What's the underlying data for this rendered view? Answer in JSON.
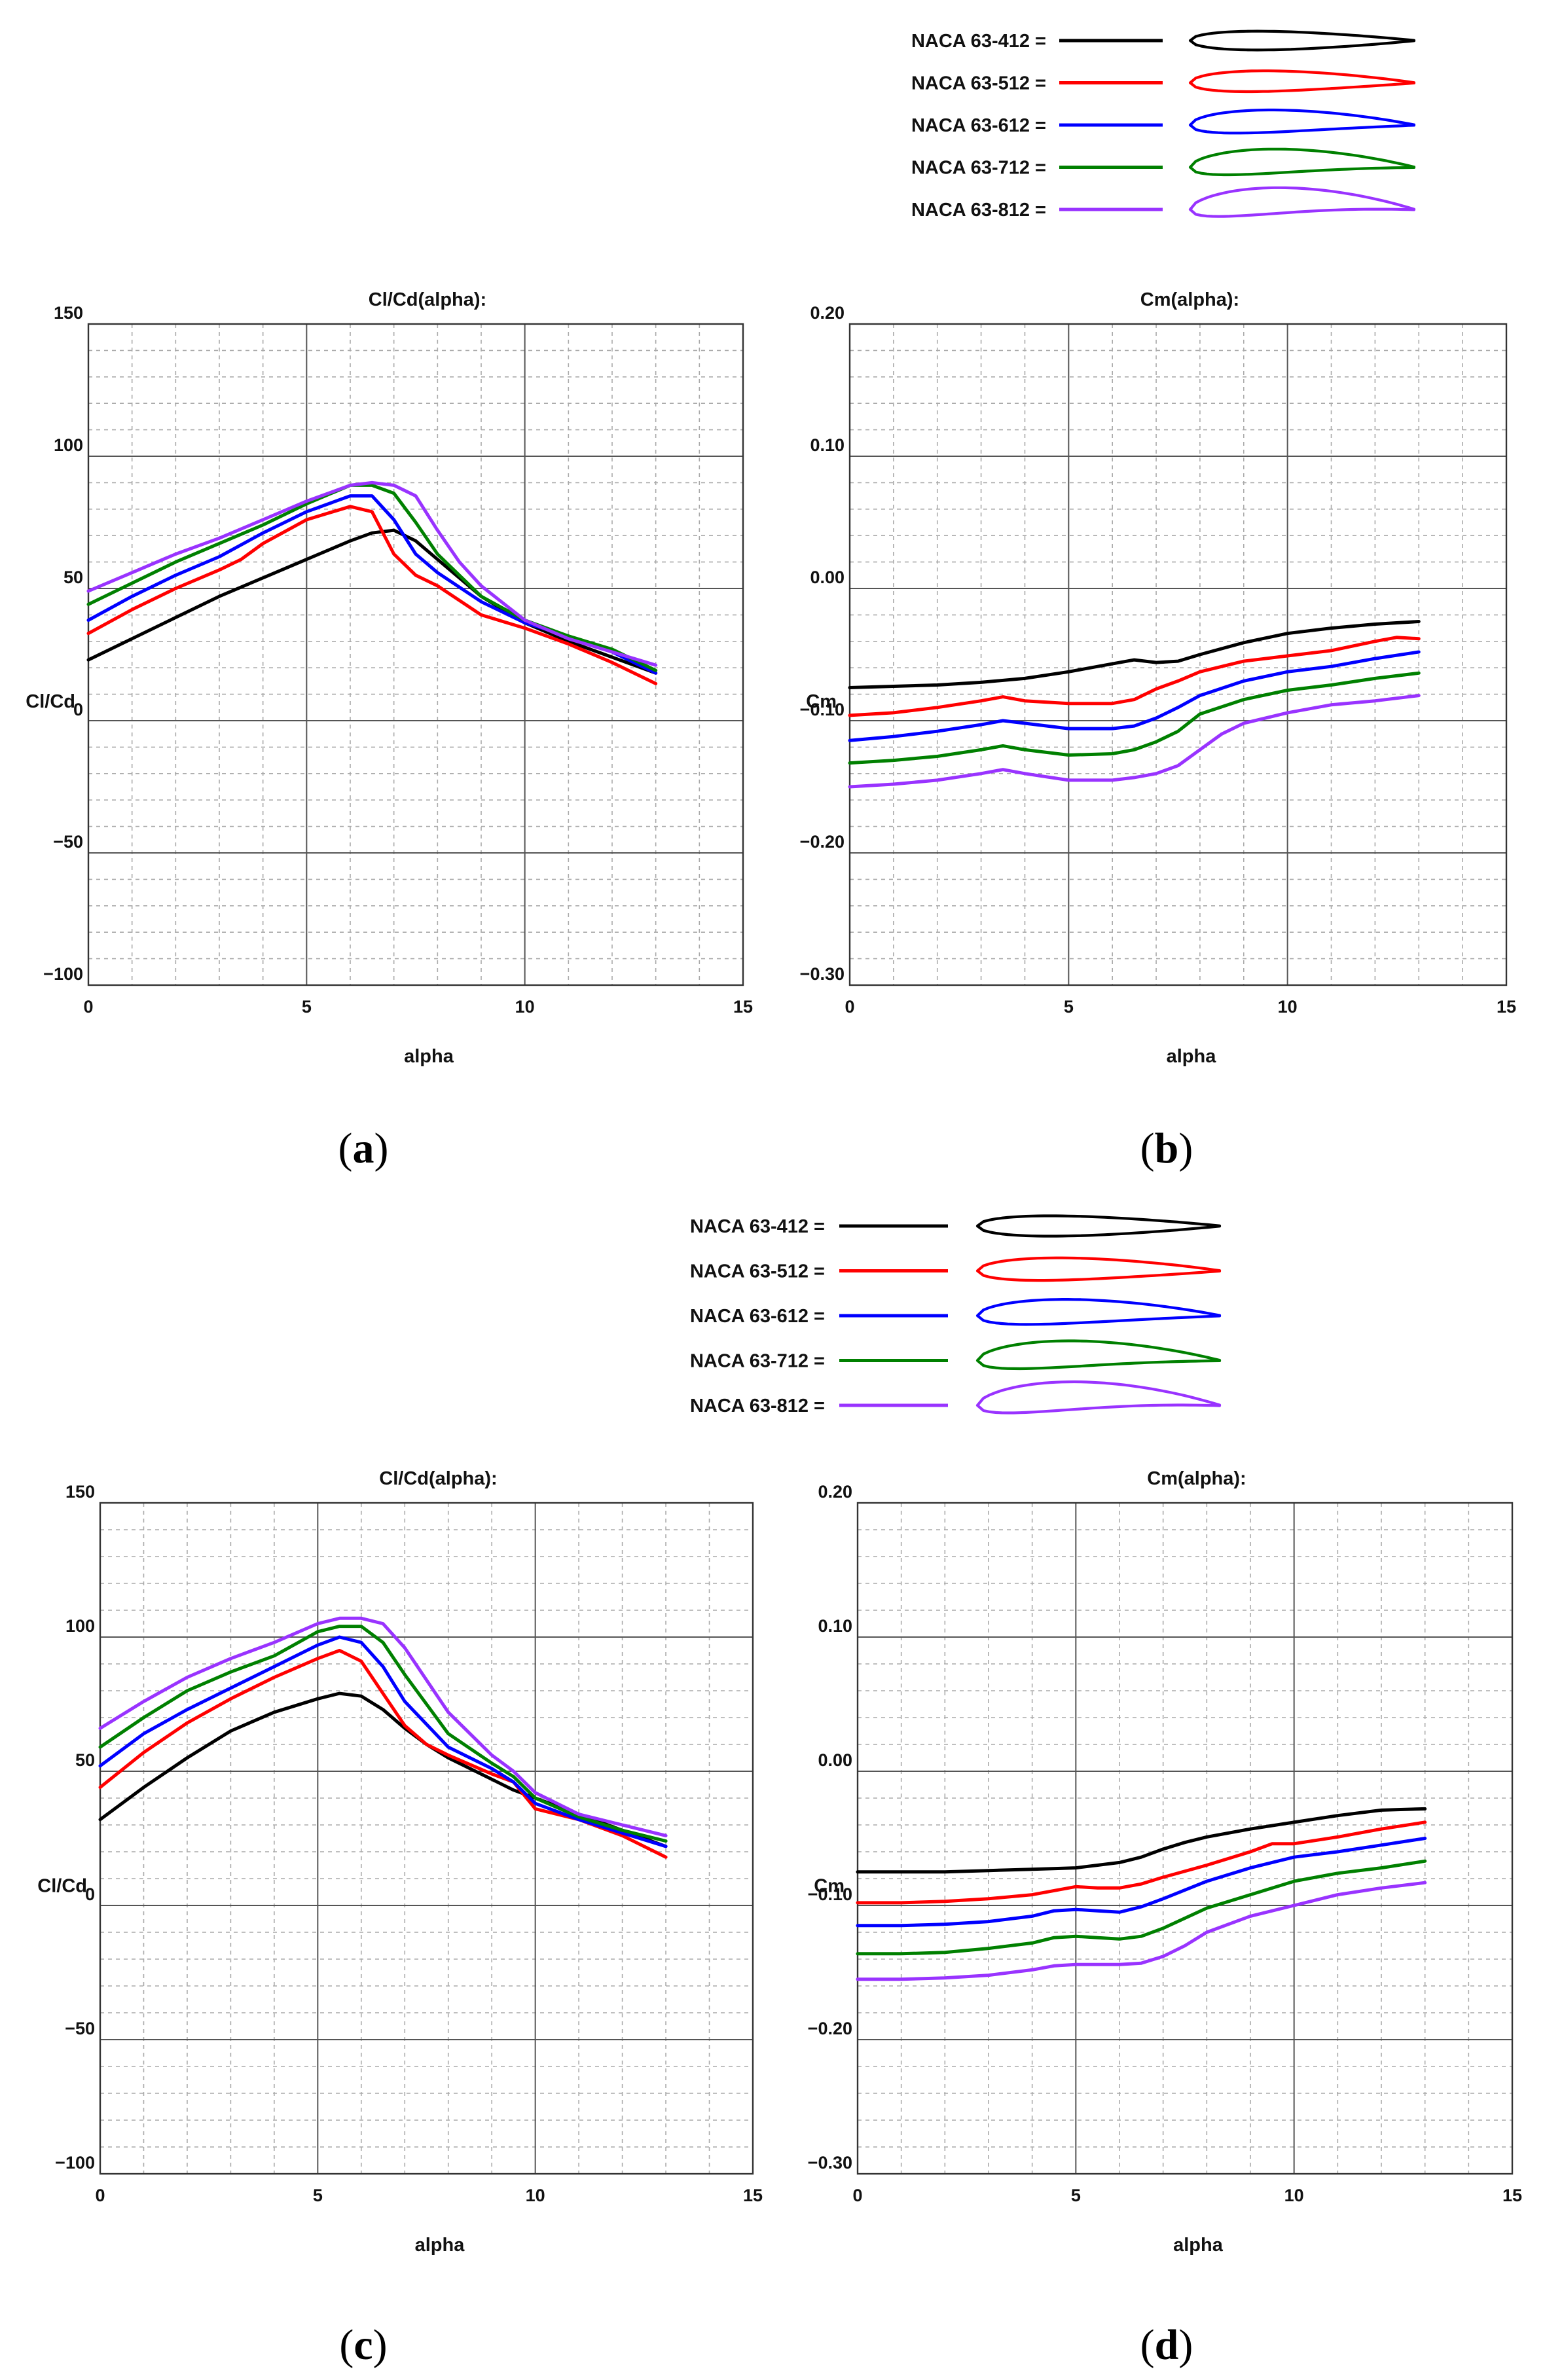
{
  "colors": {
    "NACA 63-412": "#000000",
    "NACA 63-512": "#ff0000",
    "NACA 63-612": "#0000ff",
    "NACA 63-712": "#008000",
    "NACA 63-812": "#9933ff",
    "grid_major": "#555555",
    "grid_minor": "#aaaaaa"
  },
  "legends": [
    {
      "entries": [
        {
          "name": "NACA 63-412",
          "label": "NACA 63-412 =",
          "icon": "airfoil-icon"
        },
        {
          "name": "NACA 63-512",
          "label": "NACA 63-512 =",
          "icon": "airfoil-icon"
        },
        {
          "name": "NACA 63-612",
          "label": "NACA 63-612 =",
          "icon": "airfoil-icon"
        },
        {
          "name": "NACA 63-712",
          "label": "NACA 63-712 =",
          "icon": "airfoil-icon"
        },
        {
          "name": "NACA 63-812",
          "label": "NACA 63-812 =",
          "icon": "airfoil-icon"
        }
      ]
    },
    {
      "entries": [
        {
          "name": "NACA 63-412",
          "label": "NACA 63-412 =",
          "icon": "airfoil-icon"
        },
        {
          "name": "NACA 63-512",
          "label": "NACA 63-512 =",
          "icon": "airfoil-icon"
        },
        {
          "name": "NACA 63-612",
          "label": "NACA 63-612 =",
          "icon": "airfoil-icon"
        },
        {
          "name": "NACA 63-712",
          "label": "NACA 63-712 =",
          "icon": "airfoil-icon"
        },
        {
          "name": "NACA 63-812",
          "label": "NACA 63-812 =",
          "icon": "airfoil-icon"
        }
      ]
    }
  ],
  "captions": {
    "a": "a",
    "b": "b",
    "c": "c",
    "d": "d"
  },
  "chart_data": [
    {
      "id": "a",
      "type": "line",
      "title": "Cl/Cd(alpha):",
      "xlabel": "alpha",
      "ylabel": "Cl/Cd",
      "xlim": [
        0,
        15
      ],
      "ylim": [
        -100,
        150
      ],
      "xticks": [
        0,
        5,
        10,
        15
      ],
      "yticks": [
        -100,
        -50,
        0,
        50,
        100,
        150
      ],
      "xtick_labels": [
        "0",
        "5",
        "10",
        "15"
      ],
      "ytick_labels": [
        "−100",
        "−50",
        "0",
        "50",
        "100",
        "150"
      ],
      "grid": true,
      "series": [
        {
          "name": "NACA 63-412",
          "x": [
            0,
            1,
            2,
            3,
            4,
            5,
            6,
            6.5,
            7,
            7.5,
            8,
            9,
            10,
            11,
            12,
            13
          ],
          "y": [
            23,
            31,
            39,
            47,
            54,
            61,
            68,
            71,
            72,
            68,
            61,
            47,
            37,
            30,
            24,
            18
          ]
        },
        {
          "name": "NACA 63-512",
          "x": [
            0,
            1,
            2,
            3,
            3.5,
            4,
            5,
            6,
            6.5,
            7,
            7.5,
            8,
            9,
            10,
            11,
            12,
            13
          ],
          "y": [
            33,
            42,
            50,
            57,
            61,
            67,
            76,
            81,
            79,
            63,
            55,
            51,
            40,
            35,
            29,
            22,
            14
          ]
        },
        {
          "name": "NACA 63-612",
          "x": [
            0,
            1,
            2,
            3,
            4,
            5,
            6,
            6.5,
            7,
            7.5,
            8,
            9,
            10,
            11,
            12,
            13
          ],
          "y": [
            38,
            47,
            55,
            62,
            71,
            79,
            85,
            85,
            76,
            63,
            56,
            45,
            37,
            32,
            26,
            18
          ]
        },
        {
          "name": "NACA 63-712",
          "x": [
            0,
            1,
            2,
            3,
            4,
            5,
            6,
            6.5,
            7,
            7.5,
            8,
            9,
            10,
            11,
            12,
            13
          ],
          "y": [
            44,
            52,
            60,
            67,
            74,
            82,
            89,
            89,
            86,
            75,
            63,
            47,
            38,
            32,
            27,
            19
          ]
        },
        {
          "name": "NACA 63-812",
          "x": [
            0,
            1,
            2,
            3,
            4,
            5,
            6,
            6.5,
            7,
            7.5,
            8,
            8.5,
            9,
            10,
            11,
            12,
            13
          ],
          "y": [
            49,
            56,
            63,
            69,
            76,
            83,
            89,
            90,
            89,
            85,
            72,
            60,
            51,
            38,
            31,
            26,
            21
          ]
        }
      ]
    },
    {
      "id": "b",
      "type": "line",
      "title": "Cm(alpha):",
      "xlabel": "alpha",
      "ylabel": "Cm",
      "xlim": [
        0,
        15
      ],
      "ylim": [
        -0.3,
        0.2
      ],
      "xticks": [
        0,
        5,
        10,
        15
      ],
      "yticks": [
        -0.3,
        -0.2,
        -0.1,
        0,
        0.1,
        0.2
      ],
      "xtick_labels": [
        "0",
        "5",
        "10",
        "15"
      ],
      "ytick_labels": [
        "−0.30",
        "−0.20",
        "−0.10",
        "0.00",
        "0.10",
        "0.20"
      ],
      "grid": true,
      "series": [
        {
          "name": "NACA 63-412",
          "x": [
            0,
            1,
            2,
            3,
            4,
            5,
            6,
            6.5,
            7,
            7.5,
            8,
            9,
            10,
            11,
            12,
            13
          ],
          "y": [
            -0.075,
            -0.074,
            -0.073,
            -0.071,
            -0.068,
            -0.063,
            -0.057,
            -0.054,
            -0.056,
            -0.055,
            -0.05,
            -0.041,
            -0.034,
            -0.03,
            -0.027,
            -0.025
          ]
        },
        {
          "name": "NACA 63-512",
          "x": [
            0,
            1,
            2,
            3,
            3.5,
            4,
            5,
            6,
            6.5,
            7,
            7.5,
            8,
            9,
            10,
            11,
            12,
            12.5,
            13
          ],
          "y": [
            -0.096,
            -0.094,
            -0.09,
            -0.085,
            -0.082,
            -0.085,
            -0.087,
            -0.087,
            -0.084,
            -0.076,
            -0.07,
            -0.063,
            -0.055,
            -0.051,
            -0.047,
            -0.04,
            -0.037,
            -0.038
          ]
        },
        {
          "name": "NACA 63-612",
          "x": [
            0,
            1,
            2,
            3,
            3.5,
            4,
            5,
            6,
            6.5,
            7,
            7.5,
            8,
            9,
            10,
            11,
            12,
            13
          ],
          "y": [
            -0.115,
            -0.112,
            -0.108,
            -0.103,
            -0.1,
            -0.102,
            -0.106,
            -0.106,
            -0.104,
            -0.098,
            -0.09,
            -0.081,
            -0.07,
            -0.063,
            -0.059,
            -0.053,
            -0.048
          ]
        },
        {
          "name": "NACA 63-712",
          "x": [
            0,
            1,
            2,
            3,
            3.5,
            4,
            5,
            6,
            6.5,
            7,
            7.5,
            8,
            9,
            10,
            11,
            12,
            13
          ],
          "y": [
            -0.132,
            -0.13,
            -0.127,
            -0.122,
            -0.119,
            -0.122,
            -0.126,
            -0.125,
            -0.122,
            -0.116,
            -0.108,
            -0.095,
            -0.084,
            -0.077,
            -0.073,
            -0.068,
            -0.064
          ]
        },
        {
          "name": "NACA 63-812",
          "x": [
            0,
            1,
            2,
            3,
            3.5,
            4,
            5,
            6,
            6.5,
            7,
            7.5,
            8,
            8.5,
            9,
            10,
            11,
            12,
            13
          ],
          "y": [
            -0.15,
            -0.148,
            -0.145,
            -0.14,
            -0.137,
            -0.14,
            -0.145,
            -0.145,
            -0.143,
            -0.14,
            -0.134,
            -0.122,
            -0.11,
            -0.102,
            -0.094,
            -0.088,
            -0.085,
            -0.081
          ]
        }
      ]
    },
    {
      "id": "c",
      "type": "line",
      "title": "Cl/Cd(alpha):",
      "xlabel": "alpha",
      "ylabel": "Cl/Cd",
      "xlim": [
        0,
        15
      ],
      "ylim": [
        -100,
        150
      ],
      "xticks": [
        0,
        5,
        10,
        15
      ],
      "yticks": [
        -100,
        -50,
        0,
        50,
        100,
        150
      ],
      "xtick_labels": [
        "0",
        "5",
        "10",
        "15"
      ],
      "ytick_labels": [
        "−100",
        "−50",
        "0",
        "50",
        "100",
        "150"
      ],
      "grid": true,
      "series": [
        {
          "name": "NACA 63-412",
          "x": [
            0,
            1,
            2,
            3,
            4,
            5,
            5.5,
            6,
            6.5,
            7,
            7.5,
            8,
            9,
            9.5,
            10,
            11,
            12,
            13
          ],
          "y": [
            32,
            44,
            55,
            65,
            72,
            77,
            79,
            78,
            73,
            66,
            60,
            55,
            47,
            43,
            40,
            34,
            28,
            22
          ]
        },
        {
          "name": "NACA 63-512",
          "x": [
            0,
            1,
            2,
            3,
            4,
            5,
            5.5,
            6,
            6.5,
            7,
            7.5,
            8,
            9,
            9.5,
            10,
            11,
            12,
            13
          ],
          "y": [
            44,
            57,
            68,
            77,
            85,
            92,
            95,
            91,
            79,
            67,
            60,
            56,
            49,
            46,
            36,
            32,
            26,
            18
          ]
        },
        {
          "name": "NACA 63-612",
          "x": [
            0,
            1,
            2,
            3,
            4,
            5,
            5.5,
            6,
            6.5,
            7,
            8,
            9,
            9.5,
            10,
            11,
            12,
            13
          ],
          "y": [
            52,
            64,
            73,
            81,
            89,
            97,
            100,
            98,
            89,
            76,
            59,
            51,
            46,
            38,
            32,
            27,
            22
          ]
        },
        {
          "name": "NACA 63-712",
          "x": [
            0,
            1,
            2,
            3,
            4,
            5,
            5.5,
            6,
            6.5,
            7,
            8,
            9,
            9.5,
            10,
            11,
            12,
            13
          ],
          "y": [
            59,
            70,
            80,
            87,
            93,
            102,
            104,
            104,
            98,
            86,
            64,
            53,
            48,
            40,
            33,
            28,
            24
          ]
        },
        {
          "name": "NACA 63-812",
          "x": [
            0,
            1,
            2,
            3,
            4,
            5,
            5.5,
            6,
            6.5,
            7,
            8,
            9,
            9.5,
            10,
            11,
            12,
            13
          ],
          "y": [
            66,
            76,
            85,
            92,
            98,
            105,
            107,
            107,
            105,
            96,
            72,
            56,
            50,
            42,
            34,
            30,
            26
          ]
        }
      ]
    },
    {
      "id": "d",
      "type": "line",
      "title": "Cm(alpha):",
      "xlabel": "alpha",
      "ylabel": "Cm",
      "xlim": [
        0,
        15
      ],
      "ylim": [
        -0.3,
        0.2
      ],
      "xticks": [
        0,
        5,
        10,
        15
      ],
      "yticks": [
        -0.3,
        -0.2,
        -0.1,
        0,
        0.1,
        0.2
      ],
      "xtick_labels": [
        "0",
        "5",
        "10",
        "15"
      ],
      "ytick_labels": [
        "−0.30",
        "−0.20",
        "−0.10",
        "0.00",
        "0.10",
        "0.20"
      ],
      "grid": true,
      "series": [
        {
          "name": "NACA 63-412",
          "x": [
            0,
            1,
            2,
            3,
            4,
            5,
            5.5,
            6,
            6.5,
            7,
            7.5,
            8,
            9,
            10,
            11,
            12,
            13
          ],
          "y": [
            -0.075,
            -0.075,
            -0.075,
            -0.074,
            -0.073,
            -0.072,
            -0.07,
            -0.068,
            -0.064,
            -0.058,
            -0.053,
            -0.049,
            -0.043,
            -0.038,
            -0.033,
            -0.029,
            -0.028
          ]
        },
        {
          "name": "NACA 63-512",
          "x": [
            0,
            1,
            2,
            3,
            4,
            4.5,
            5,
            5.5,
            6,
            6.5,
            7,
            8,
            9,
            9.5,
            10,
            11,
            12,
            13
          ],
          "y": [
            -0.098,
            -0.098,
            -0.097,
            -0.095,
            -0.092,
            -0.089,
            -0.086,
            -0.087,
            -0.087,
            -0.084,
            -0.079,
            -0.07,
            -0.06,
            -0.054,
            -0.054,
            -0.049,
            -0.043,
            -0.038
          ]
        },
        {
          "name": "NACA 63-612",
          "x": [
            0,
            1,
            2,
            3,
            4,
            4.5,
            5,
            5.5,
            6,
            6.5,
            7,
            8,
            9,
            10,
            11,
            12,
            13
          ],
          "y": [
            -0.115,
            -0.115,
            -0.114,
            -0.112,
            -0.108,
            -0.104,
            -0.103,
            -0.104,
            -0.105,
            -0.101,
            -0.095,
            -0.082,
            -0.072,
            -0.064,
            -0.06,
            -0.055,
            -0.05
          ]
        },
        {
          "name": "NACA 63-712",
          "x": [
            0,
            1,
            2,
            3,
            4,
            4.5,
            5,
            5.5,
            6,
            6.5,
            7,
            8,
            9,
            10,
            11,
            12,
            13
          ],
          "y": [
            -0.136,
            -0.136,
            -0.135,
            -0.132,
            -0.128,
            -0.124,
            -0.123,
            -0.124,
            -0.125,
            -0.123,
            -0.117,
            -0.102,
            -0.092,
            -0.082,
            -0.076,
            -0.072,
            -0.067
          ]
        },
        {
          "name": "NACA 63-812",
          "x": [
            0,
            1,
            2,
            3,
            4,
            4.5,
            5,
            5.5,
            6,
            6.5,
            7,
            7.5,
            8,
            9,
            10,
            11,
            12,
            13
          ],
          "y": [
            -0.155,
            -0.155,
            -0.154,
            -0.152,
            -0.148,
            -0.145,
            -0.144,
            -0.144,
            -0.144,
            -0.143,
            -0.138,
            -0.13,
            -0.12,
            -0.108,
            -0.1,
            -0.092,
            -0.087,
            -0.083
          ]
        }
      ]
    }
  ]
}
